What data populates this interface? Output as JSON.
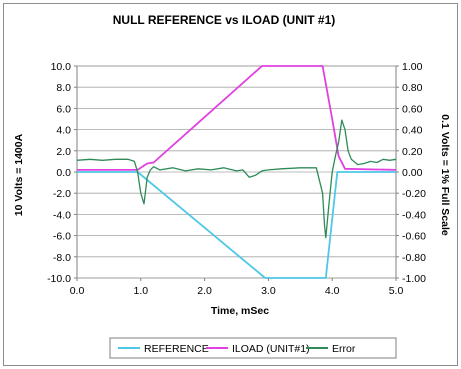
{
  "chart_data": {
    "type": "line",
    "title": "NULL REFERENCE vs ILOAD (UNIT #1)",
    "xlabel": "Time, mSec",
    "ylabel_left": "10 Volts = 1400A",
    "ylabel_right": "0.1 Volts = 1% Full Scale",
    "xlim": [
      0,
      5
    ],
    "ylim_left": [
      -10,
      10
    ],
    "ylim_right": [
      -1,
      1
    ],
    "x_ticks": [
      "0.0",
      "1.0",
      "2.0",
      "3.0",
      "4.0",
      "5.0"
    ],
    "y_left_ticks": [
      "10.0",
      "8.0",
      "6.0",
      "4.0",
      "2.0",
      "0.0",
      "-2.0",
      "-4.0",
      "-6.0",
      "-8.0",
      "-10.0"
    ],
    "y_right_ticks": [
      "1.00",
      "0.80",
      "0.60",
      "0.40",
      "0.20",
      "0.00",
      "-0.20",
      "-0.40",
      "-0.60",
      "-0.80",
      "-1.00"
    ],
    "grid": true,
    "legend_position": "bottom",
    "series": [
      {
        "name": "REFERENCE",
        "color": "#4fc8e8",
        "axis": "left",
        "x": [
          0.0,
          0.95,
          2.95,
          3.9,
          4.08,
          5.0
        ],
        "y": [
          0.0,
          0.0,
          -10.0,
          -10.0,
          0.0,
          0.0
        ]
      },
      {
        "name": "ILOAD (UNIT#1)",
        "color": "#e040e0",
        "axis": "left",
        "x": [
          0.0,
          0.95,
          1.0,
          1.1,
          1.2,
          2.9,
          3.85,
          4.0,
          4.1,
          4.2,
          5.0
        ],
        "y": [
          0.2,
          0.2,
          0.4,
          0.8,
          0.9,
          10.0,
          10.0,
          5.0,
          1.5,
          0.3,
          0.2
        ]
      },
      {
        "name": "Error",
        "color": "#2e8b57",
        "axis": "left",
        "x": [
          0.0,
          0.2,
          0.4,
          0.6,
          0.8,
          0.9,
          0.95,
          1.0,
          1.05,
          1.1,
          1.15,
          1.2,
          1.3,
          1.5,
          1.7,
          1.9,
          2.1,
          2.3,
          2.5,
          2.6,
          2.7,
          2.8,
          2.9,
          3.0,
          3.2,
          3.5,
          3.75,
          3.85,
          3.88,
          3.9,
          3.95,
          4.0,
          4.05,
          4.1,
          4.15,
          4.2,
          4.25,
          4.3,
          4.4,
          4.5,
          4.6,
          4.7,
          4.8,
          4.9,
          5.0
        ],
        "y": [
          1.1,
          1.2,
          1.1,
          1.2,
          1.2,
          1.0,
          0.0,
          -2.0,
          -3.0,
          -0.5,
          0.2,
          0.5,
          0.2,
          0.4,
          0.1,
          0.3,
          0.2,
          0.4,
          0.1,
          0.2,
          -0.5,
          -0.3,
          0.1,
          0.2,
          0.3,
          0.4,
          0.4,
          -2.0,
          -5.0,
          -6.2,
          -3.0,
          0.0,
          1.5,
          2.8,
          4.9,
          4.0,
          2.0,
          1.2,
          0.7,
          0.8,
          1.0,
          0.9,
          1.2,
          1.1,
          1.2
        ]
      }
    ]
  }
}
